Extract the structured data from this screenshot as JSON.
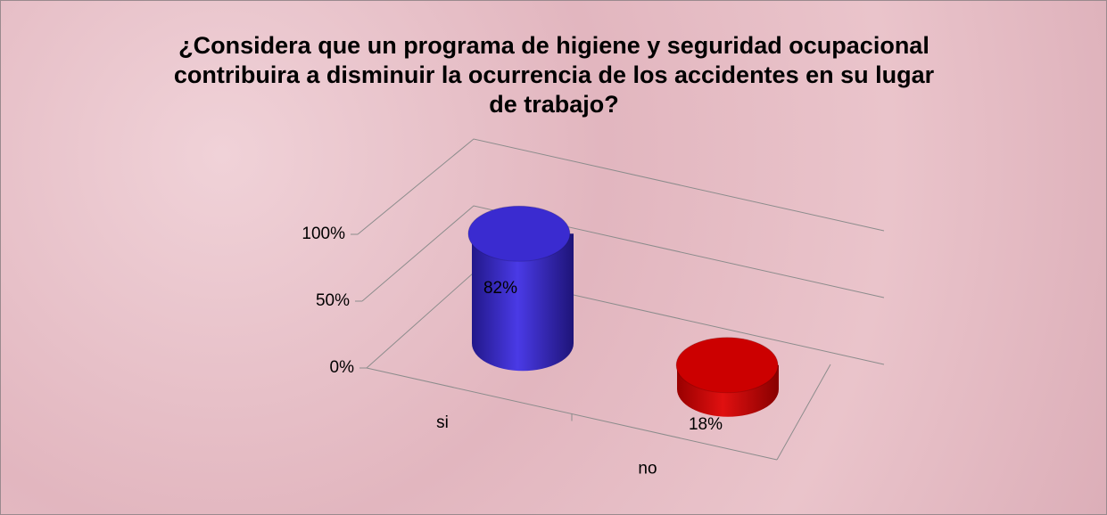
{
  "chart_data": {
    "type": "bar3d",
    "title": "¿Considera que un programa de higiene y seguridad ocupacional contribuira a disminuir la ocurrencia de los accidentes en su lugar de trabajo?",
    "categories": [
      "si",
      "no"
    ],
    "values": [
      82,
      18
    ],
    "value_labels": [
      "82%",
      "18%"
    ],
    "colors": [
      "#3a2bd0",
      "#cc0000"
    ],
    "ylim": [
      0,
      100
    ],
    "yticks": [
      {
        "value": 0,
        "label": "0%"
      },
      {
        "value": 50,
        "label": "50%"
      },
      {
        "value": 100,
        "label": "100%"
      }
    ],
    "grid": true
  }
}
